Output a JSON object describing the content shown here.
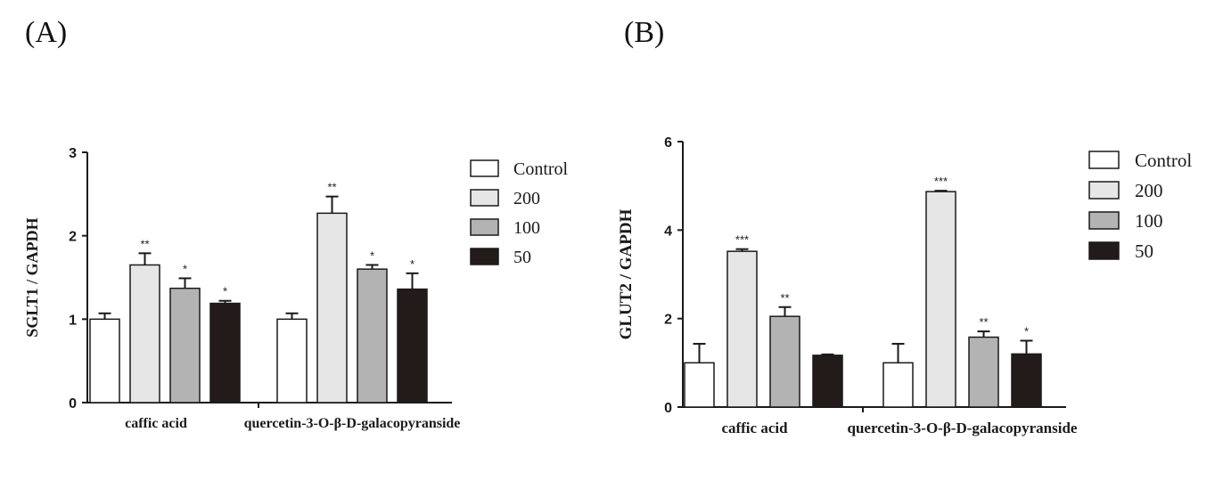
{
  "panels": [
    {
      "label": "(A)",
      "chart_data": {
        "type": "bar",
        "ylabel": "SGLT1 / GAPDH",
        "xlabel": "",
        "ylim": [
          0,
          3
        ],
        "yticks": [
          "0",
          "1",
          "2",
          "3"
        ],
        "categories": [
          "caffic acid",
          "quercetin-3-O-β-D-galacopyranside"
        ],
        "legend_position": "right",
        "series": [
          {
            "name": "Control",
            "color": "#ffffff",
            "values": [
              1.0,
              1.0
            ],
            "errors": [
              0.07,
              0.07
            ],
            "sig": [
              "",
              ""
            ]
          },
          {
            "name": "200",
            "color": "#e6e6e6",
            "values": [
              1.65,
              2.27
            ],
            "errors": [
              0.14,
              0.2
            ],
            "sig": [
              "**",
              "**"
            ]
          },
          {
            "name": "100",
            "color": "#b3b3b3",
            "values": [
              1.37,
              1.6
            ],
            "errors": [
              0.12,
              0.05
            ],
            "sig": [
              "*",
              "*"
            ]
          },
          {
            "name": "50",
            "color": "#231a1a",
            "values": [
              1.19,
              1.36
            ],
            "errors": [
              0.03,
              0.19
            ],
            "sig": [
              "*",
              "*"
            ]
          }
        ]
      }
    },
    {
      "label": "(B)",
      "chart_data": {
        "type": "bar",
        "ylabel": "GLUT2 / GAPDH",
        "xlabel": "",
        "ylim": [
          0,
          6
        ],
        "yticks": [
          "0",
          "2",
          "4",
          "6"
        ],
        "categories": [
          "caffic acid",
          "quercetin-3-O-β-D-galacopyranside"
        ],
        "legend_position": "right",
        "series": [
          {
            "name": "Control",
            "color": "#ffffff",
            "values": [
              1.0,
              1.0
            ],
            "errors": [
              0.43,
              0.43
            ],
            "sig": [
              "",
              ""
            ]
          },
          {
            "name": "200",
            "color": "#e6e6e6",
            "values": [
              3.52,
              4.87
            ],
            "errors": [
              0.05,
              0.02
            ],
            "sig": [
              "***",
              "***"
            ]
          },
          {
            "name": "100",
            "color": "#b3b3b3",
            "values": [
              2.05,
              1.58
            ],
            "errors": [
              0.21,
              0.13
            ],
            "sig": [
              "**",
              "**"
            ]
          },
          {
            "name": "50",
            "color": "#231a1a",
            "values": [
              1.17,
              1.2
            ],
            "errors": [
              0.02,
              0.3
            ],
            "sig": [
              "",
              "*"
            ]
          }
        ]
      }
    }
  ]
}
